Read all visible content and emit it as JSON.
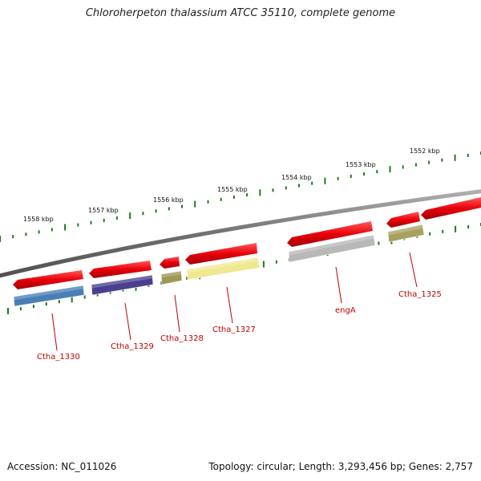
{
  "title": "Chloroherpeton thalassium ATCC 35110, complete genome",
  "footer": {
    "accession": "Accession: NC_011026",
    "summary": "Topology: circular; Length: 3,293,456 bp; Genes: 2,757"
  },
  "kbp_labels": [
    {
      "id": "1558",
      "text": "1558 kbp"
    },
    {
      "id": "1557",
      "text": "1557 kbp"
    },
    {
      "id": "1556",
      "text": "1556 kbp"
    },
    {
      "id": "1555",
      "text": "1555 kbp"
    },
    {
      "id": "1554",
      "text": "1554 kbp"
    },
    {
      "id": "1553",
      "text": "1553 kbp"
    },
    {
      "id": "1552",
      "text": "1552 kbp"
    }
  ],
  "genes": [
    {
      "id": "ctha1330",
      "label": "Ctha_1330",
      "color": "#4a7fb5"
    },
    {
      "id": "ctha1329",
      "label": "Ctha_1329",
      "color": "#4a3f8f"
    },
    {
      "id": "ctha1328",
      "label": "Ctha_1328",
      "color": "#9c9858"
    },
    {
      "id": "ctha1327",
      "label": "Ctha_1327",
      "color": "#f0e890"
    },
    {
      "id": "enga",
      "label": "engA",
      "color": "#b8b8b8"
    },
    {
      "id": "ctha1325",
      "label": "Ctha_1325",
      "color": "#a8a060"
    }
  ],
  "colors": {
    "cds_arrow": "#e8000a",
    "backbone": "#808080",
    "tick": "#1e7a1e",
    "gene_label": "#c00000"
  }
}
